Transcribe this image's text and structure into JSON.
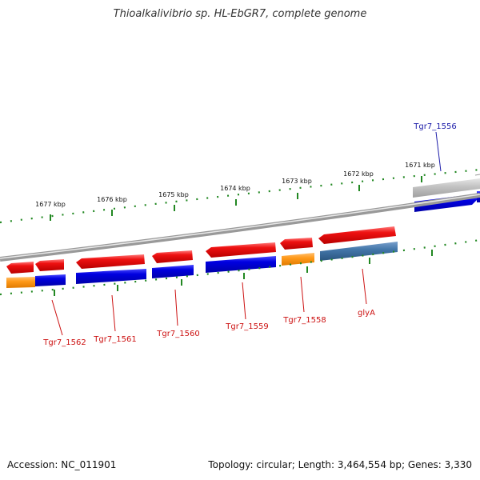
{
  "title": "Thioalkalivibrio sp. HL-EbGR7, complete genome",
  "footer": {
    "accession": "Accession: NC_011901",
    "summary": "Topology: circular; Length: 3,464,554 bp; Genes: 3,330"
  },
  "scale_labels": [
    "1677 kbp",
    "1676 kbp",
    "1675 kbp",
    "1674 kbp",
    "1673 kbp",
    "1672 kbp",
    "1671 kbp"
  ],
  "gene_labels": [
    {
      "name": "Tgr7_1556",
      "color": "#1a1aa8"
    },
    {
      "name": "glyA",
      "color": "#cc1111"
    },
    {
      "name": "Tgr7_1558",
      "color": "#cc1111"
    },
    {
      "name": "Tgr7_1559",
      "color": "#cc1111"
    },
    {
      "name": "Tgr7_1560",
      "color": "#cc1111"
    },
    {
      "name": "Tgr7_1561",
      "color": "#cc1111"
    },
    {
      "name": "Tgr7_1562",
      "color": "#cc1111"
    }
  ],
  "colors": {
    "forward_strand": "#ee1111",
    "cds_blue": "#0000dd",
    "cds_orange": "#ff9a1a",
    "cds_steelblue": "#4477aa",
    "cds_gray": "#bbbbbb",
    "backbone": "#888888",
    "tick": "#228822"
  }
}
